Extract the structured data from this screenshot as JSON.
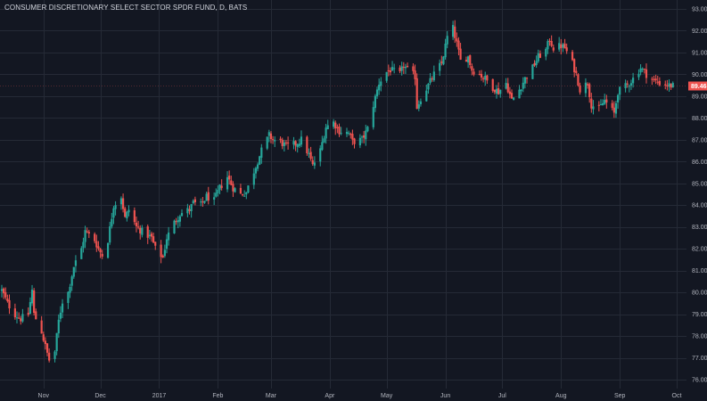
{
  "chart_data": {
    "type": "candlestick",
    "title": "CONSUMER DISCRETIONARY SELECT SECTOR SPDR FUND, D, BATS",
    "xlabel": "",
    "ylabel": "",
    "grid": true,
    "ylim": [
      75.6,
      93.4
    ],
    "yticks": [
      76,
      77,
      78,
      79,
      80,
      81,
      82,
      83,
      84,
      85,
      86,
      87,
      88,
      89,
      90,
      91,
      92,
      93
    ],
    "ytick_labels": [
      "76.00",
      "77.00",
      "78.00",
      "79.00",
      "80.00",
      "81.00",
      "82.00",
      "83.00",
      "84.00",
      "85.00",
      "86.00",
      "87.00",
      "88.00",
      "89.00",
      "90.00",
      "91.00",
      "92.00",
      "93.00"
    ],
    "x_tick_labels": [
      {
        "label": "Nov",
        "x": "2016-11-01"
      },
      {
        "label": "Dec",
        "x": "2016-12-01"
      },
      {
        "label": "2017",
        "x": "2017-01-01"
      },
      {
        "label": "Feb",
        "x": "2017-02-01"
      },
      {
        "label": "Mar",
        "x": "2017-03-01"
      },
      {
        "label": "Apr",
        "x": "2017-04-01"
      },
      {
        "label": "May",
        "x": "2017-05-01"
      },
      {
        "label": "Jun",
        "x": "2017-06-01"
      },
      {
        "label": "Jul",
        "x": "2017-07-01"
      },
      {
        "label": "Aug",
        "x": "2017-08-01"
      },
      {
        "label": "Sep",
        "x": "2017-09-01"
      },
      {
        "label": "Oct",
        "x": "2017-10-01"
      }
    ],
    "last_price": 89.46,
    "last_price_label": "89.46",
    "colors": {
      "background": "#131722",
      "grid": "#252a36",
      "up": "#26a69a",
      "down": "#ef5350",
      "text": "#b2b5be",
      "last_price_bg": "#ef5350"
    },
    "close_path": [
      [
        "2016-10-10",
        80.1
      ],
      [
        "2016-10-13",
        79.5
      ],
      [
        "2016-10-17",
        79.0
      ],
      [
        "2016-10-20",
        78.8
      ],
      [
        "2016-10-24",
        79.0
      ],
      [
        "2016-10-26",
        80.1
      ],
      [
        "2016-10-27",
        79.0
      ],
      [
        "2016-10-31",
        78.2
      ],
      [
        "2016-11-03",
        77.2
      ],
      [
        "2016-11-04",
        76.9
      ],
      [
        "2016-11-07",
        77.3
      ],
      [
        "2016-11-09",
        78.7
      ],
      [
        "2016-11-11",
        79.6
      ],
      [
        "2016-11-14",
        80.0
      ],
      [
        "2016-11-17",
        81.2
      ],
      [
        "2016-11-21",
        82.0
      ],
      [
        "2016-11-23",
        82.8
      ],
      [
        "2016-11-28",
        82.4
      ],
      [
        "2016-11-30",
        82.0
      ],
      [
        "2016-12-02",
        81.7
      ],
      [
        "2016-12-05",
        82.4
      ],
      [
        "2016-12-08",
        84.0
      ],
      [
        "2016-12-12",
        84.4
      ],
      [
        "2016-12-14",
        83.4
      ],
      [
        "2016-12-16",
        83.8
      ],
      [
        "2016-12-20",
        83.0
      ],
      [
        "2016-12-23",
        82.8
      ],
      [
        "2016-12-28",
        82.5
      ],
      [
        "2016-12-30",
        82.0
      ],
      [
        "2017-01-03",
        81.6
      ],
      [
        "2017-01-05",
        82.5
      ],
      [
        "2017-01-09",
        83.2
      ],
      [
        "2017-01-12",
        83.6
      ],
      [
        "2017-01-17",
        83.8
      ],
      [
        "2017-01-19",
        84.1
      ],
      [
        "2017-01-23",
        84.0
      ],
      [
        "2017-01-26",
        84.4
      ],
      [
        "2017-01-30",
        84.2
      ],
      [
        "2017-02-02",
        84.8
      ],
      [
        "2017-02-06",
        85.3
      ],
      [
        "2017-02-09",
        84.8
      ],
      [
        "2017-02-13",
        84.5
      ],
      [
        "2017-02-16",
        84.6
      ],
      [
        "2017-02-21",
        85.8
      ],
      [
        "2017-02-24",
        86.5
      ],
      [
        "2017-02-28",
        87.2
      ],
      [
        "2017-03-02",
        87.0
      ],
      [
        "2017-03-06",
        86.9
      ],
      [
        "2017-03-09",
        86.7
      ],
      [
        "2017-03-14",
        86.8
      ],
      [
        "2017-03-17",
        87.0
      ],
      [
        "2017-03-21",
        86.3
      ],
      [
        "2017-03-23",
        85.8
      ],
      [
        "2017-03-27",
        86.5
      ],
      [
        "2017-03-30",
        87.6
      ],
      [
        "2017-04-03",
        87.8
      ],
      [
        "2017-04-06",
        87.4
      ],
      [
        "2017-04-11",
        87.3
      ],
      [
        "2017-04-13",
        86.9
      ],
      [
        "2017-04-18",
        87.0
      ],
      [
        "2017-04-21",
        87.5
      ],
      [
        "2017-04-24",
        88.6
      ],
      [
        "2017-04-27",
        89.6
      ],
      [
        "2017-05-01",
        90.1
      ],
      [
        "2017-05-03",
        90.2
      ],
      [
        "2017-05-08",
        90.0
      ],
      [
        "2017-05-10",
        90.4
      ],
      [
        "2017-05-12",
        90.2
      ],
      [
        "2017-05-16",
        89.9
      ],
      [
        "2017-05-17",
        88.5
      ],
      [
        "2017-05-19",
        88.9
      ],
      [
        "2017-05-23",
        89.5
      ],
      [
        "2017-05-26",
        90.0
      ],
      [
        "2017-05-30",
        90.5
      ],
      [
        "2017-06-02",
        91.7
      ],
      [
        "2017-06-05",
        92.1
      ],
      [
        "2017-06-07",
        91.4
      ],
      [
        "2017-06-09",
        90.6
      ],
      [
        "2017-06-13",
        90.8
      ],
      [
        "2017-06-15",
        90.2
      ],
      [
        "2017-06-19",
        90.0
      ],
      [
        "2017-06-22",
        89.8
      ],
      [
        "2017-06-26",
        89.4
      ],
      [
        "2017-06-29",
        89.2
      ],
      [
        "2017-07-03",
        89.6
      ],
      [
        "2017-07-06",
        88.8
      ],
      [
        "2017-07-10",
        89.3
      ],
      [
        "2017-07-13",
        89.8
      ],
      [
        "2017-07-17",
        90.3
      ],
      [
        "2017-07-20",
        90.8
      ],
      [
        "2017-07-24",
        91.1
      ],
      [
        "2017-07-26",
        91.6
      ],
      [
        "2017-07-28",
        91.2
      ],
      [
        "2017-08-01",
        91.3
      ],
      [
        "2017-08-03",
        91.2
      ],
      [
        "2017-08-07",
        90.5
      ],
      [
        "2017-08-09",
        90.0
      ],
      [
        "2017-08-11",
        89.3
      ],
      [
        "2017-08-15",
        89.6
      ],
      [
        "2017-08-17",
        88.6
      ],
      [
        "2017-08-21",
        88.4
      ],
      [
        "2017-08-24",
        88.8
      ],
      [
        "2017-08-29",
        88.2
      ],
      [
        "2017-08-31",
        89.2
      ],
      [
        "2017-09-05",
        89.5
      ],
      [
        "2017-09-08",
        89.8
      ],
      [
        "2017-09-12",
        90.3
      ],
      [
        "2017-09-15",
        90.0
      ],
      [
        "2017-09-19",
        89.7
      ],
      [
        "2017-09-22",
        89.6
      ],
      [
        "2017-09-26",
        89.5
      ],
      [
        "2017-09-29",
        89.46
      ]
    ]
  }
}
